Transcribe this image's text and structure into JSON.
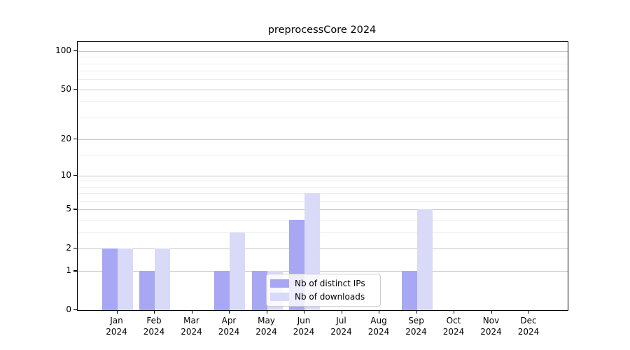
{
  "title": "preprocessCore 2024",
  "chart_data": {
    "type": "bar",
    "title": "preprocessCore 2024",
    "categories": [
      "Jan 2024",
      "Feb 2024",
      "Mar 2024",
      "Apr 2024",
      "May 2024",
      "Jun 2024",
      "Jul 2024",
      "Aug 2024",
      "Sep 2024",
      "Oct 2024",
      "Nov 2024",
      "Dec 2024"
    ],
    "x_tick_lines": [
      {
        "month": "Jan",
        "year": "2024"
      },
      {
        "month": "Feb",
        "year": "2024"
      },
      {
        "month": "Mar",
        "year": "2024"
      },
      {
        "month": "Apr",
        "year": "2024"
      },
      {
        "month": "May",
        "year": "2024"
      },
      {
        "month": "Jun",
        "year": "2024"
      },
      {
        "month": "Jul",
        "year": "2024"
      },
      {
        "month": "Aug",
        "year": "2024"
      },
      {
        "month": "Sep",
        "year": "2024"
      },
      {
        "month": "Oct",
        "year": "2024"
      },
      {
        "month": "Nov",
        "year": "2024"
      },
      {
        "month": "Dec",
        "year": "2024"
      }
    ],
    "series": [
      {
        "name": "Nb of distinct IPs",
        "color": "#a7a7f4",
        "values": [
          2,
          1,
          0,
          1,
          1,
          4,
          0,
          0,
          1,
          0,
          0,
          0
        ]
      },
      {
        "name": "Nb of downloads",
        "color": "#d9d9f8",
        "values": [
          2,
          2,
          0,
          3,
          1,
          7,
          0,
          0,
          5,
          0,
          0,
          0
        ]
      }
    ],
    "xlabel": "",
    "ylabel": "",
    "yscale": "log1p",
    "ylim": [
      0,
      116
    ],
    "y_major_ticks": [
      0,
      1,
      2,
      5,
      10,
      20,
      50,
      100
    ],
    "y_minor_gridlines": [
      3,
      4,
      6,
      7,
      8,
      9,
      15,
      30,
      40,
      60,
      70,
      80,
      90
    ],
    "grid": true,
    "legend_position": "lower center"
  }
}
